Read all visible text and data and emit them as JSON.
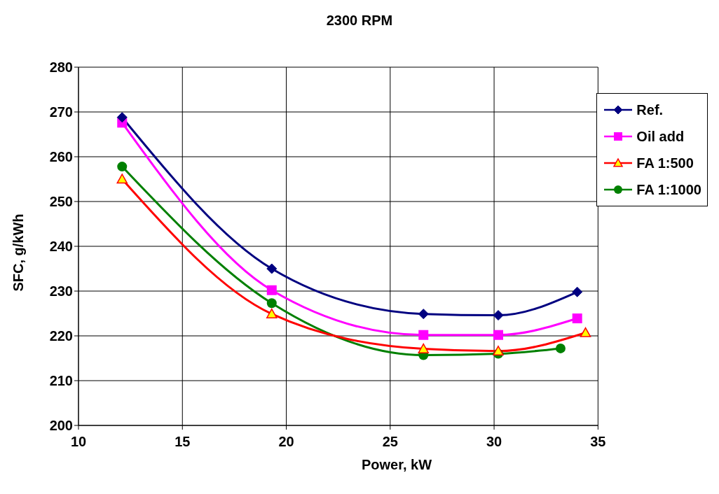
{
  "chart_data": {
    "type": "line",
    "title": "2300 RPM",
    "xlabel": "Power, kW",
    "ylabel": "SFC, g/kWh",
    "xlim": [
      10,
      35
    ],
    "xticks": [
      10,
      15,
      20,
      25,
      30,
      35
    ],
    "ylim": [
      200,
      280
    ],
    "yticks": [
      200,
      210,
      220,
      230,
      240,
      250,
      260,
      270,
      280
    ],
    "grid": true,
    "legend": "top right",
    "line_style": "solid",
    "series": [
      {
        "name": "Ref.",
        "color": "#000080",
        "marker": "diamond",
        "x": [
          12.1,
          19.3,
          26.6,
          30.2,
          34.0
        ],
        "values": [
          268.8,
          235.0,
          224.9,
          224.6,
          229.8
        ]
      },
      {
        "name": "Oil add",
        "color": "#ff00ff",
        "marker": "square",
        "x": [
          12.1,
          19.3,
          26.6,
          30.2,
          34.0
        ],
        "values": [
          267.6,
          230.2,
          220.2,
          220.2,
          223.9
        ]
      },
      {
        "name": "FA 1:500",
        "color": "#ff0000",
        "marker": "triangle",
        "x": [
          12.1,
          19.3,
          26.6,
          30.2,
          34.4
        ],
        "values": [
          255.0,
          224.9,
          217.1,
          216.6,
          220.7
        ]
      },
      {
        "name": "FA 1:1000",
        "color": "#008000",
        "marker": "circle",
        "x": [
          12.1,
          19.3,
          26.6,
          30.2,
          33.2
        ],
        "values": [
          257.8,
          227.3,
          215.7,
          216.0,
          217.2
        ]
      }
    ]
  }
}
